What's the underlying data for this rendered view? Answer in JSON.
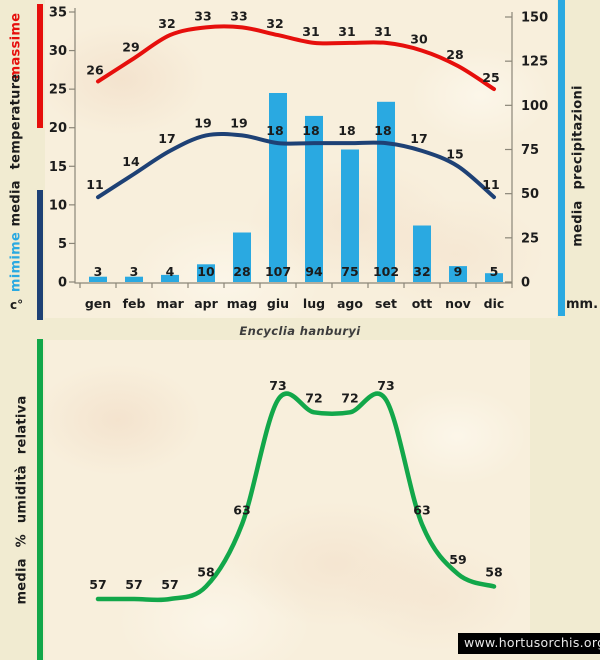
{
  "title": "Encyclia hanburyi",
  "footer_url": "www.hortusorchis.org",
  "colors": {
    "background": "#f1ebd1",
    "plot_background": "#f8efdc",
    "max_line": "#e60f0c",
    "min_line": "#1e4175",
    "precip_bar": "#2aa9e1",
    "humidity_line": "#12a74a",
    "axis": "#8b8678",
    "ink": "#1c1c1c"
  },
  "chart_data": [
    {
      "type": "bar",
      "subtype": "combo-bar-line-climogram",
      "categories": [
        "gen",
        "feb",
        "mar",
        "apr",
        "mag",
        "giu",
        "lug",
        "ago",
        "set",
        "ott",
        "nov",
        "dic"
      ],
      "series": [
        {
          "name": "massime",
          "type": "line",
          "axis": "left",
          "values": [
            26,
            29,
            32,
            33,
            33,
            32,
            31,
            31,
            31,
            30,
            28,
            25
          ]
        },
        {
          "name": "mimime",
          "type": "line",
          "axis": "left",
          "values": [
            11,
            14,
            17,
            19,
            19,
            18,
            18,
            18,
            18,
            17,
            15,
            11
          ]
        },
        {
          "name": "media precipitazioni",
          "type": "bar",
          "axis": "right",
          "values": [
            3,
            3,
            4,
            10,
            28,
            107,
            94,
            75,
            102,
            32,
            9,
            5
          ]
        }
      ],
      "left_axis": {
        "label": "media temperature",
        "unit": "c°",
        "range": [
          0,
          35
        ],
        "ticks": [
          0,
          5,
          10,
          15,
          20,
          25,
          30,
          35
        ]
      },
      "right_axis": {
        "label": "media precipitazioni",
        "unit": "mm.",
        "range": [
          0,
          150
        ],
        "ticks": [
          0,
          25,
          50,
          75,
          100,
          125,
          150
        ]
      },
      "grid": false,
      "legend": "colored side labels (massime red, mimime blue)"
    },
    {
      "type": "line",
      "categories": [
        "gen",
        "feb",
        "mar",
        "apr",
        "mag",
        "giu",
        "lug",
        "ago",
        "set",
        "ott",
        "nov",
        "dic"
      ],
      "series": [
        {
          "name": "media % umidità relativa",
          "values": [
            57,
            57,
            57,
            58,
            63,
            73,
            72,
            72,
            73,
            63,
            59,
            58
          ]
        }
      ],
      "ylabel": "media % umidità relativa",
      "xlabel": "",
      "grid": false,
      "legend": "none"
    }
  ]
}
